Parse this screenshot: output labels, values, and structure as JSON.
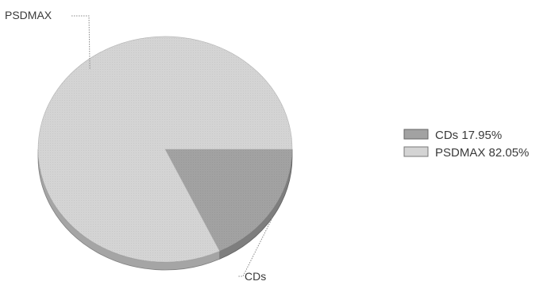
{
  "chart_data": {
    "type": "pie",
    "style": "3d",
    "labels": [
      "CDs",
      "PSDMAX"
    ],
    "values": [
      17.95,
      82.05
    ],
    "unit": "%",
    "colors": [
      "#a2a2a2",
      "#d4d4d4"
    ],
    "legend_position": "right",
    "legend_entries": [
      "CDs 17.95%",
      "PSDMAX 82.05%"
    ],
    "slice_labels": [
      "CDs",
      "PSDMAX"
    ]
  }
}
